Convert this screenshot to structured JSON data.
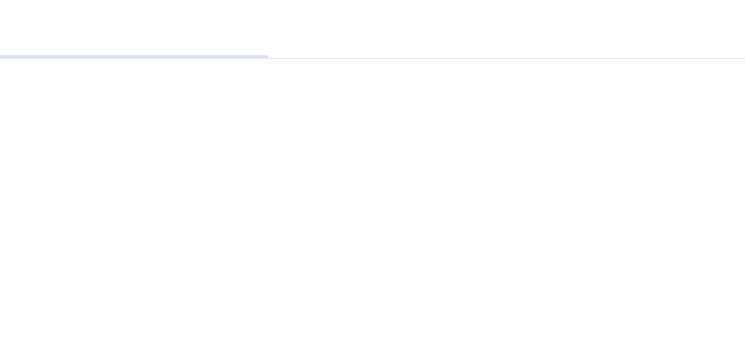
{
  "loading": {
    "progress": 0.36,
    "color": "#d5e2f3"
  },
  "colors": {
    "background": "#fefefe",
    "divider": "#e6e8ec"
  }
}
